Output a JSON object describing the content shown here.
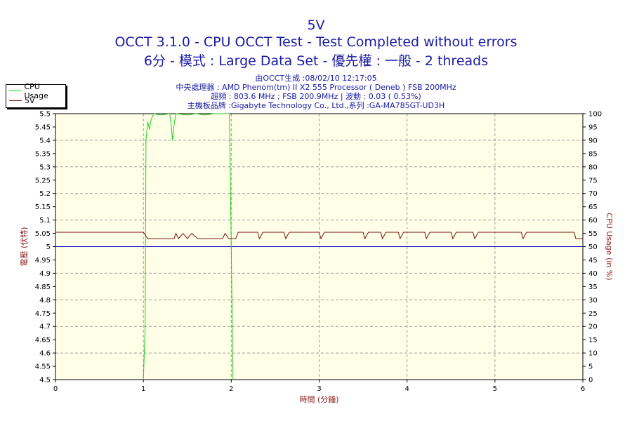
{
  "header": {
    "line1": "5V",
    "line2": "OCCT 3.1.0 - CPU OCCT Test - Test Completed without errors",
    "line3": "6分 - 模式 : Large Data Set - 優先權 : 一般 - 2 threads"
  },
  "info": {
    "line1": "由OCCT生成 :08/02/10 12:17:05",
    "line2": "中央處理器 : AMD Phenom(tm) II X2 555 Processor ( Deneb ) FSB 200MHz",
    "line3": "超頻 : 803.6 MHz ; FSB 200.9MHz | 波動 : 0.03 ( 0.53%)",
    "line4": "主機板品牌 :Gigabyte Technology Co., Ltd.,系列 :GA-MA785GT-UD3H"
  },
  "legend": {
    "items": [
      "CPU Usage",
      "5V"
    ]
  },
  "colors": {
    "cpu": "#22cc22",
    "voltage": "#7a1010",
    "ref": "#0000cc",
    "plot_bg": "#ffffe8",
    "grid": "#9a9a9a",
    "title": "#1a1aa6",
    "axis_title": "#8b1a1a"
  },
  "chart_data": {
    "type": "line",
    "xlabel": "時間 (分鐘)",
    "ylabel_left": "電壓 (伏特)",
    "ylabel_right": "CPU Usage (in %)",
    "xlim": [
      0,
      6
    ],
    "ylim_left": [
      4.5,
      5.5
    ],
    "ylim_right": [
      0,
      100
    ],
    "x_ticks": [
      0,
      1,
      2,
      3,
      4,
      5,
      6
    ],
    "y_left_ticks": [
      "4.5",
      "4.55",
      "4.6",
      "4.65",
      "4.7",
      "4.75",
      "4.8",
      "4.85",
      "4.9",
      "4.95",
      "5",
      "5.05",
      "5.1",
      "5.15",
      "5.2",
      "5.25",
      "5.3",
      "5.35",
      "5.4",
      "5.45",
      "5.5"
    ],
    "y_right_ticks": [
      0,
      5,
      10,
      15,
      20,
      25,
      30,
      35,
      40,
      45,
      50,
      55,
      60,
      65,
      70,
      75,
      80,
      85,
      90,
      95,
      100
    ],
    "grid": true,
    "legend_position": "top-left",
    "reference_line": 5.0,
    "series": [
      {
        "name": "CPU Usage",
        "axis": "right",
        "points": [
          [
            1.0,
            0
          ],
          [
            1.02,
            20
          ],
          [
            1.03,
            90
          ],
          [
            1.05,
            97
          ],
          [
            1.07,
            94
          ],
          [
            1.09,
            98
          ],
          [
            1.12,
            100
          ],
          [
            1.2,
            99.5
          ],
          [
            1.3,
            100
          ],
          [
            1.32,
            95
          ],
          [
            1.33,
            90
          ],
          [
            1.35,
            96
          ],
          [
            1.37,
            100
          ],
          [
            1.5,
            99.5
          ],
          [
            1.6,
            100
          ],
          [
            1.7,
            99.5
          ],
          [
            1.8,
            100
          ],
          [
            1.9,
            100
          ],
          [
            1.98,
            100
          ],
          [
            2.0,
            50
          ],
          [
            2.02,
            0
          ]
        ]
      },
      {
        "name": "5V",
        "axis": "left",
        "points": [
          [
            0,
            5.054
          ],
          [
            1.0,
            5.054
          ],
          [
            1.05,
            5.03
          ],
          [
            1.35,
            5.03
          ],
          [
            1.37,
            5.05
          ],
          [
            1.4,
            5.03
          ],
          [
            1.45,
            5.05
          ],
          [
            1.5,
            5.03
          ],
          [
            1.55,
            5.05
          ],
          [
            1.62,
            5.03
          ],
          [
            1.9,
            5.03
          ],
          [
            1.93,
            5.05
          ],
          [
            1.97,
            5.03
          ],
          [
            2.05,
            5.03
          ],
          [
            2.08,
            5.054
          ],
          [
            2.3,
            5.054
          ],
          [
            2.32,
            5.03
          ],
          [
            2.36,
            5.054
          ],
          [
            2.6,
            5.054
          ],
          [
            2.62,
            5.03
          ],
          [
            2.66,
            5.054
          ],
          [
            3.0,
            5.054
          ],
          [
            3.02,
            5.03
          ],
          [
            3.06,
            5.054
          ],
          [
            3.5,
            5.054
          ],
          [
            3.52,
            5.03
          ],
          [
            3.56,
            5.054
          ],
          [
            3.7,
            5.054
          ],
          [
            3.72,
            5.03
          ],
          [
            3.76,
            5.054
          ],
          [
            3.9,
            5.054
          ],
          [
            3.92,
            5.03
          ],
          [
            3.96,
            5.054
          ],
          [
            4.2,
            5.054
          ],
          [
            4.22,
            5.03
          ],
          [
            4.26,
            5.054
          ],
          [
            4.5,
            5.054
          ],
          [
            4.52,
            5.03
          ],
          [
            4.56,
            5.054
          ],
          [
            4.75,
            5.054
          ],
          [
            4.77,
            5.03
          ],
          [
            4.81,
            5.054
          ],
          [
            5.3,
            5.054
          ],
          [
            5.32,
            5.03
          ],
          [
            5.36,
            5.054
          ],
          [
            5.9,
            5.054
          ],
          [
            5.92,
            5.03
          ],
          [
            6.0,
            5.03
          ]
        ]
      }
    ]
  }
}
